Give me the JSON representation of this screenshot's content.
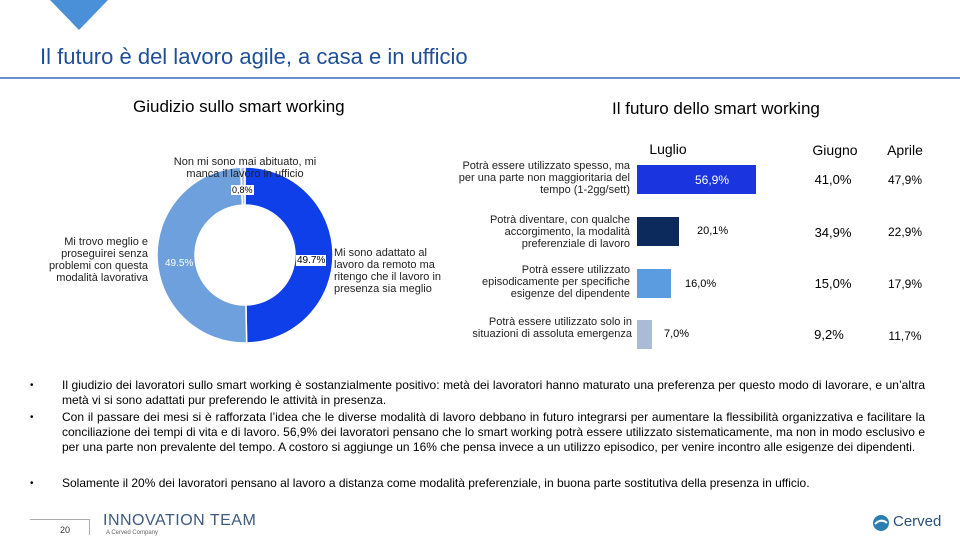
{
  "header": {
    "title": "Il futuro è del lavoro agile, a casa e in ufficio"
  },
  "left_section": {
    "title": "Giudizio sullo smart working",
    "labels": {
      "top": "Non mi sono mai abituato, mi manca il lavoro in ufficio",
      "left": "Mi trovo meglio e proseguirei senza problemi con questa modalità lavorativa",
      "right": "Mi sono adattato al lavoro da remoto ma ritengo che il lavoro in presenza sia meglio"
    },
    "percent_labels": {
      "small": "0,8%",
      "left": "49.5%",
      "right": "49.7%"
    }
  },
  "right_section": {
    "title": "Il futuro dello smart working",
    "column_headers": [
      "Luglio",
      "Giugno",
      "Aprile"
    ],
    "rows": [
      {
        "label": "Potrà essere utilizzato spesso, ma per una parte non maggioritaria del tempo (1-2gg/sett)",
        "luglio": "56,9%",
        "giugno": "41,0%",
        "aprile": "47,9%"
      },
      {
        "label": "Potrà diventare, con qualche accorgimento, la modalità preferenziale di lavoro",
        "luglio": "20,1%",
        "giugno": "34,9%",
        "aprile": "22,9%"
      },
      {
        "label": "Potrà essere utilizzato episodicamente per specifiche esigenze del dipendente",
        "luglio": "16,0%",
        "giugno": "15,0%",
        "aprile": "17,9%"
      },
      {
        "label": "Potrà essere utilizzato solo in situazioni di assoluta emergenza",
        "luglio": "7,0%",
        "giugno": "9,2%",
        "aprile": "11,7%"
      }
    ]
  },
  "chart_data": [
    {
      "type": "pie",
      "title": "Giudizio sullo smart working",
      "categories": [
        "Mi sono adattato al lavoro da remoto ma ritengo che il lavoro in presenza sia meglio",
        "Mi trovo meglio e proseguirei senza problemi con questa modalità lavorativa",
        "Non mi sono mai abituato, mi manca il lavoro in ufficio"
      ],
      "values": [
        49.7,
        49.5,
        0.8
      ],
      "colors": [
        "#0f3fe8",
        "#6ea0dd",
        "#aac4ec"
      ],
      "donut": true
    },
    {
      "type": "bar",
      "title": "Il futuro dello smart working",
      "orientation": "horizontal",
      "categories": [
        "Potrà essere utilizzato spesso, ma per una parte non maggioritaria del tempo (1-2gg/sett)",
        "Potrà diventare, con qualche accorgimento, la modalità preferenziale di lavoro",
        "Potrà essere utilizzato episodicamente per specifiche esigenze del dipendente",
        "Potrà essere utilizzato solo in situazioni di assoluta emergenza"
      ],
      "series": [
        {
          "name": "Luglio",
          "values": [
            56.9,
            20.1,
            16.0,
            7.0
          ]
        }
      ],
      "colors": [
        "#1a35e0",
        "#0c2a5c",
        "#5b9be0",
        "#aabbd8"
      ],
      "xlim": [
        0,
        60
      ]
    }
  ],
  "bullets": [
    "Il giudizio dei lavoratori sullo smart working è sostanzialmente positivo: metà dei lavoratori hanno maturato una preferenza per questo modo di lavorare, e un’altra metà vi si sono adattati pur preferendo le attività in presenza.",
    "Con il passare dei mesi si è rafforzata l’idea che le diverse modalità di lavoro debbano in futuro integrarsi per aumentare la flessibilità organizzativa e facilitare la conciliazione dei tempi di vita e di lavoro. 56,9% dei lavoratori pensano che lo smart working potrà essere utilizzato sistematicamente, ma non in modo esclusivo e per una parte non prevalente del tempo. A costoro si aggiunge un 16% che pensa invece a un utilizzo episodico, per venire incontro alle esigenze dei dipendenti.",
    "Solamente il 20% dei lavoratori pensano al lavoro a distanza come modalità preferenziale, in buona parte sostitutiva della presenza in ufficio."
  ],
  "footer": {
    "page_number": "20",
    "logo_left": "INNOVATION TEAM",
    "logo_left_sub": "A Cerved Company",
    "logo_right": "Cerved"
  }
}
